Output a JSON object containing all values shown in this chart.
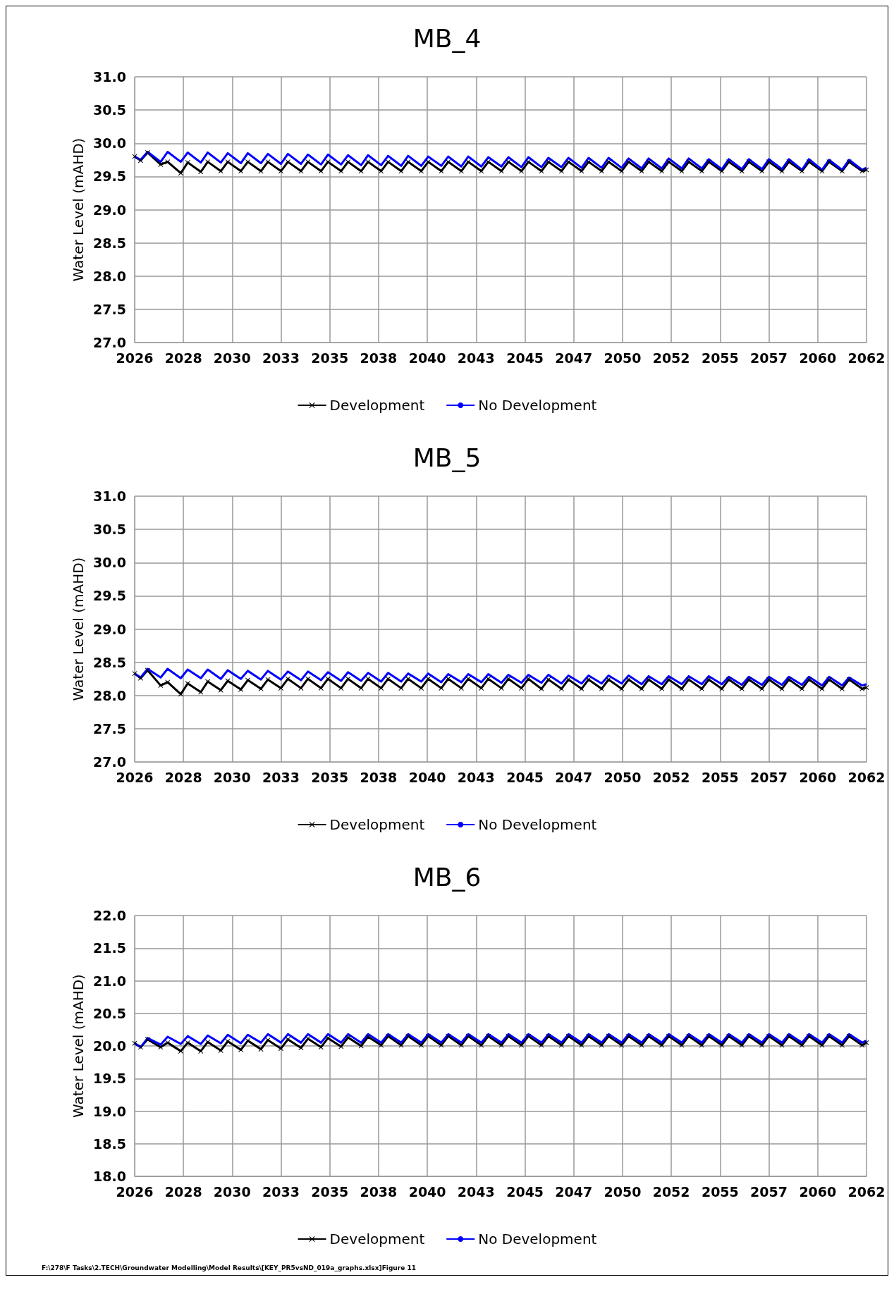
{
  "chart_data": [
    {
      "type": "line",
      "title": "MB_4",
      "ylabel": "Water Level (mAHD)",
      "x": [
        "2026-01-01",
        "2026-04-20",
        "2026-08-25",
        "2027-04-20",
        "2027-08-25",
        "2028-04-20",
        "2028-08-25",
        "2029-04-20",
        "2029-08-25",
        "2030-04-20",
        "2030-08-25",
        "2031-04-20",
        "2031-08-25",
        "2032-04-20",
        "2032-08-25",
        "2033-04-20",
        "2033-08-25",
        "2034-04-20",
        "2034-08-25",
        "2035-04-20",
        "2035-08-25",
        "2036-04-20",
        "2036-08-25",
        "2037-04-20",
        "2037-08-25",
        "2038-04-20",
        "2038-08-25",
        "2039-04-20",
        "2039-08-25",
        "2040-04-20",
        "2040-08-25",
        "2041-04-20",
        "2041-08-25",
        "2042-04-20",
        "2042-08-25",
        "2043-04-20",
        "2043-08-25",
        "2044-04-20",
        "2044-08-25",
        "2045-04-20",
        "2045-08-25",
        "2046-04-20",
        "2046-08-25",
        "2047-04-20",
        "2047-08-25",
        "2048-04-20",
        "2048-08-25",
        "2049-04-20",
        "2049-08-25",
        "2050-04-20",
        "2050-08-25",
        "2051-04-20",
        "2051-08-25",
        "2052-04-20",
        "2052-08-25",
        "2053-04-20",
        "2053-08-25",
        "2054-04-20",
        "2054-08-25",
        "2055-04-20",
        "2055-08-25",
        "2056-04-20",
        "2056-08-25",
        "2057-04-20",
        "2057-08-25",
        "2058-04-20",
        "2058-08-25",
        "2059-04-20",
        "2059-08-25",
        "2060-04-20",
        "2060-08-25",
        "2061-04-20",
        "2061-08-25",
        "2062-04-20",
        "2062-07-09"
      ],
      "series": [
        {
          "name": "Development",
          "color": "#000000",
          "marker": "cross",
          "values": [
            29.8,
            29.74,
            29.86,
            29.68,
            29.72,
            29.55,
            29.71,
            29.57,
            29.72,
            29.58,
            29.72,
            29.58,
            29.72,
            29.58,
            29.72,
            29.58,
            29.72,
            29.58,
            29.72,
            29.58,
            29.72,
            29.58,
            29.72,
            29.58,
            29.72,
            29.58,
            29.72,
            29.58,
            29.72,
            29.58,
            29.72,
            29.58,
            29.72,
            29.58,
            29.72,
            29.58,
            29.72,
            29.58,
            29.72,
            29.58,
            29.72,
            29.58,
            29.72,
            29.58,
            29.72,
            29.58,
            29.72,
            29.58,
            29.72,
            29.58,
            29.72,
            29.58,
            29.72,
            29.58,
            29.72,
            29.58,
            29.72,
            29.58,
            29.72,
            29.58,
            29.72,
            29.58,
            29.72,
            29.58,
            29.72,
            29.58,
            29.72,
            29.58,
            29.72,
            29.58,
            29.72,
            29.58,
            29.72,
            29.58,
            29.6
          ]
        },
        {
          "name": "No Development",
          "color": "#0000ff",
          "marker": "none",
          "values": [
            29.8,
            29.75,
            29.87,
            29.72,
            29.87,
            29.72,
            29.86,
            29.71,
            29.86,
            29.71,
            29.85,
            29.7,
            29.85,
            29.7,
            29.84,
            29.69,
            29.84,
            29.69,
            29.83,
            29.68,
            29.83,
            29.68,
            29.82,
            29.67,
            29.82,
            29.67,
            29.81,
            29.66,
            29.81,
            29.66,
            29.8,
            29.66,
            29.8,
            29.65,
            29.8,
            29.65,
            29.79,
            29.65,
            29.79,
            29.64,
            29.79,
            29.64,
            29.78,
            29.64,
            29.78,
            29.63,
            29.78,
            29.63,
            29.78,
            29.63,
            29.77,
            29.62,
            29.77,
            29.62,
            29.77,
            29.62,
            29.77,
            29.62,
            29.76,
            29.61,
            29.76,
            29.61,
            29.76,
            29.61,
            29.76,
            29.61,
            29.76,
            29.6,
            29.76,
            29.6,
            29.75,
            29.6,
            29.75,
            29.6,
            29.63
          ]
        }
      ],
      "xlim": [
        "2026-01-01",
        "2062-07-09"
      ],
      "xticks": [
        {
          "value": "2026-01-01",
          "label": "2026"
        },
        {
          "value": "2028-06-08",
          "label": "2028"
        },
        {
          "value": "2030-11-13",
          "label": "2030"
        },
        {
          "value": "2033-04-21",
          "label": "2033"
        },
        {
          "value": "2035-09-26",
          "label": "2035"
        },
        {
          "value": "2038-03-03",
          "label": "2038"
        },
        {
          "value": "2040-08-09",
          "label": "2040"
        },
        {
          "value": "2043-01-15",
          "label": "2043"
        },
        {
          "value": "2045-06-24",
          "label": "2045"
        },
        {
          "value": "2047-11-29",
          "label": "2047"
        },
        {
          "value": "2050-05-06",
          "label": "2050"
        },
        {
          "value": "2052-10-11",
          "label": "2052"
        },
        {
          "value": "2055-03-20",
          "label": "2055"
        },
        {
          "value": "2057-08-25",
          "label": "2057"
        },
        {
          "value": "2060-02-01",
          "label": "2060"
        },
        {
          "value": "2062-07-09",
          "label": "2062"
        }
      ],
      "ylim": [
        27,
        31
      ],
      "yticks": [
        {
          "value": 27,
          "label": "27.0"
        },
        {
          "value": 27.5,
          "label": "27.5"
        },
        {
          "value": 28,
          "label": "28.0"
        },
        {
          "value": 28.5,
          "label": "28.5"
        },
        {
          "value": 29,
          "label": "29.0"
        },
        {
          "value": 29.5,
          "label": "29.5"
        },
        {
          "value": 30,
          "label": "30.0"
        },
        {
          "value": 30.5,
          "label": "30.5"
        },
        {
          "value": 31,
          "label": "31.0"
        }
      ],
      "grid": true,
      "legend": "bottom"
    },
    {
      "type": "line",
      "title": "MB_5",
      "ylabel": "Water Level (mAHD)",
      "x": [
        "2026-01-01",
        "2026-04-20",
        "2026-08-25",
        "2027-04-20",
        "2027-08-25",
        "2028-04-20",
        "2028-08-25",
        "2029-04-20",
        "2029-08-25",
        "2030-04-20",
        "2030-08-25",
        "2031-04-20",
        "2031-08-25",
        "2032-04-20",
        "2032-08-25",
        "2033-04-20",
        "2033-08-25",
        "2034-04-20",
        "2034-08-25",
        "2035-04-20",
        "2035-08-25",
        "2036-04-20",
        "2036-08-25",
        "2037-04-20",
        "2037-08-25",
        "2038-04-20",
        "2038-08-25",
        "2039-04-20",
        "2039-08-25",
        "2040-04-20",
        "2040-08-25",
        "2041-04-20",
        "2041-08-25",
        "2042-04-20",
        "2042-08-25",
        "2043-04-20",
        "2043-08-25",
        "2044-04-20",
        "2044-08-25",
        "2045-04-20",
        "2045-08-25",
        "2046-04-20",
        "2046-08-25",
        "2047-04-20",
        "2047-08-25",
        "2048-04-20",
        "2048-08-25",
        "2049-04-20",
        "2049-08-25",
        "2050-04-20",
        "2050-08-25",
        "2051-04-20",
        "2051-08-25",
        "2052-04-20",
        "2052-08-25",
        "2053-04-20",
        "2053-08-25",
        "2054-04-20",
        "2054-08-25",
        "2055-04-20",
        "2055-08-25",
        "2056-04-20",
        "2056-08-25",
        "2057-04-20",
        "2057-08-25",
        "2058-04-20",
        "2058-08-25",
        "2059-04-20",
        "2059-08-25",
        "2060-04-20",
        "2060-08-25",
        "2061-04-20",
        "2061-08-25",
        "2062-04-20",
        "2062-07-09"
      ],
      "series": [
        {
          "name": "Development",
          "color": "#000000",
          "marker": "cross",
          "values": [
            28.33,
            28.26,
            28.38,
            28.15,
            28.2,
            28.02,
            28.18,
            28.05,
            28.21,
            28.08,
            28.22,
            28.09,
            28.23,
            28.1,
            28.24,
            28.11,
            28.25,
            28.11,
            28.25,
            28.11,
            28.25,
            28.11,
            28.25,
            28.11,
            28.25,
            28.11,
            28.25,
            28.11,
            28.25,
            28.11,
            28.25,
            28.11,
            28.25,
            28.11,
            28.25,
            28.11,
            28.25,
            28.11,
            28.25,
            28.11,
            28.25,
            28.1,
            28.24,
            28.1,
            28.24,
            28.1,
            28.24,
            28.1,
            28.24,
            28.1,
            28.24,
            28.1,
            28.24,
            28.1,
            28.24,
            28.1,
            28.24,
            28.1,
            28.24,
            28.1,
            28.24,
            28.1,
            28.24,
            28.1,
            28.24,
            28.1,
            28.24,
            28.1,
            28.24,
            28.1,
            28.24,
            28.1,
            28.24,
            28.1,
            28.12
          ]
        },
        {
          "name": "No Development",
          "color": "#0000ff",
          "marker": "none",
          "values": [
            28.33,
            28.27,
            28.4,
            28.27,
            28.4,
            28.26,
            28.39,
            28.26,
            28.39,
            28.25,
            28.38,
            28.25,
            28.37,
            28.24,
            28.37,
            28.24,
            28.36,
            28.23,
            28.36,
            28.23,
            28.35,
            28.22,
            28.35,
            28.22,
            28.34,
            28.21,
            28.34,
            28.21,
            28.33,
            28.21,
            28.33,
            28.2,
            28.32,
            28.2,
            28.32,
            28.2,
            28.32,
            28.19,
            28.31,
            28.19,
            28.31,
            28.19,
            28.31,
            28.18,
            28.3,
            28.18,
            28.3,
            28.18,
            28.3,
            28.18,
            28.3,
            28.17,
            28.29,
            28.17,
            28.29,
            28.17,
            28.29,
            28.17,
            28.29,
            28.17,
            28.28,
            28.16,
            28.28,
            28.16,
            28.28,
            28.16,
            28.28,
            28.16,
            28.28,
            28.15,
            28.28,
            28.15,
            28.27,
            28.15,
            28.17
          ]
        }
      ],
      "xlim": [
        "2026-01-01",
        "2062-07-09"
      ],
      "xticks": [
        {
          "value": "2026-01-01",
          "label": "2026"
        },
        {
          "value": "2028-06-08",
          "label": "2028"
        },
        {
          "value": "2030-11-13",
          "label": "2030"
        },
        {
          "value": "2033-04-21",
          "label": "2033"
        },
        {
          "value": "2035-09-26",
          "label": "2035"
        },
        {
          "value": "2038-03-03",
          "label": "2038"
        },
        {
          "value": "2040-08-09",
          "label": "2040"
        },
        {
          "value": "2043-01-15",
          "label": "2043"
        },
        {
          "value": "2045-06-24",
          "label": "2045"
        },
        {
          "value": "2047-11-29",
          "label": "2047"
        },
        {
          "value": "2050-05-06",
          "label": "2050"
        },
        {
          "value": "2052-10-11",
          "label": "2052"
        },
        {
          "value": "2055-03-20",
          "label": "2055"
        },
        {
          "value": "2057-08-25",
          "label": "2057"
        },
        {
          "value": "2060-02-01",
          "label": "2060"
        },
        {
          "value": "2062-07-09",
          "label": "2062"
        }
      ],
      "ylim": [
        27,
        31
      ],
      "yticks": [
        {
          "value": 27,
          "label": "27.0"
        },
        {
          "value": 27.5,
          "label": "27.5"
        },
        {
          "value": 28,
          "label": "28.0"
        },
        {
          "value": 28.5,
          "label": "28.5"
        },
        {
          "value": 29,
          "label": "29.0"
        },
        {
          "value": 29.5,
          "label": "29.5"
        },
        {
          "value": 30,
          "label": "30.0"
        },
        {
          "value": 30.5,
          "label": "30.5"
        },
        {
          "value": 31,
          "label": "31.0"
        }
      ],
      "grid": true,
      "legend": "bottom"
    },
    {
      "type": "line",
      "title": "MB_6",
      "ylabel": "Water Level (mAHD)",
      "x": [
        "2026-01-01",
        "2026-04-20",
        "2026-08-25",
        "2027-04-20",
        "2027-08-25",
        "2028-04-20",
        "2028-08-25",
        "2029-04-20",
        "2029-08-25",
        "2030-04-20",
        "2030-08-25",
        "2031-04-20",
        "2031-08-25",
        "2032-04-20",
        "2032-08-25",
        "2033-04-20",
        "2033-08-25",
        "2034-04-20",
        "2034-08-25",
        "2035-04-20",
        "2035-08-25",
        "2036-04-20",
        "2036-08-25",
        "2037-04-20",
        "2037-08-25",
        "2038-04-20",
        "2038-08-25",
        "2039-04-20",
        "2039-08-25",
        "2040-04-20",
        "2040-08-25",
        "2041-04-20",
        "2041-08-25",
        "2042-04-20",
        "2042-08-25",
        "2043-04-20",
        "2043-08-25",
        "2044-04-20",
        "2044-08-25",
        "2045-04-20",
        "2045-08-25",
        "2046-04-20",
        "2046-08-25",
        "2047-04-20",
        "2047-08-25",
        "2048-04-20",
        "2048-08-25",
        "2049-04-20",
        "2049-08-25",
        "2050-04-20",
        "2050-08-25",
        "2051-04-20",
        "2051-08-25",
        "2052-04-20",
        "2052-08-25",
        "2053-04-20",
        "2053-08-25",
        "2054-04-20",
        "2054-08-25",
        "2055-04-20",
        "2055-08-25",
        "2056-04-20",
        "2056-08-25",
        "2057-04-20",
        "2057-08-25",
        "2058-04-20",
        "2058-08-25",
        "2059-04-20",
        "2059-08-25",
        "2060-04-20",
        "2060-08-25",
        "2061-04-20",
        "2061-08-25",
        "2062-04-20",
        "2062-07-09"
      ],
      "series": [
        {
          "name": "Development",
          "color": "#000000",
          "marker": "cross",
          "values": [
            20.04,
            19.98,
            20.1,
            19.98,
            20.05,
            19.92,
            20.05,
            19.92,
            20.06,
            19.93,
            20.07,
            19.94,
            20.08,
            19.95,
            20.09,
            19.96,
            20.1,
            19.97,
            20.11,
            19.98,
            20.12,
            19.99,
            20.13,
            20.0,
            20.14,
            20.01,
            20.15,
            20.01,
            20.15,
            20.01,
            20.15,
            20.01,
            20.15,
            20.01,
            20.15,
            20.01,
            20.15,
            20.01,
            20.15,
            20.01,
            20.15,
            20.01,
            20.15,
            20.01,
            20.15,
            20.01,
            20.15,
            20.01,
            20.15,
            20.01,
            20.15,
            20.01,
            20.15,
            20.01,
            20.15,
            20.01,
            20.15,
            20.01,
            20.15,
            20.01,
            20.15,
            20.01,
            20.15,
            20.01,
            20.15,
            20.01,
            20.15,
            20.01,
            20.15,
            20.01,
            20.15,
            20.01,
            20.15,
            20.01,
            20.05
          ]
        },
        {
          "name": "No Development",
          "color": "#0000ff",
          "marker": "none",
          "values": [
            20.04,
            19.98,
            20.12,
            20.02,
            20.14,
            20.03,
            20.15,
            20.03,
            20.16,
            20.04,
            20.17,
            20.04,
            20.17,
            20.05,
            20.18,
            20.05,
            20.18,
            20.05,
            20.18,
            20.05,
            20.18,
            20.05,
            20.18,
            20.05,
            20.18,
            20.05,
            20.18,
            20.05,
            20.18,
            20.05,
            20.18,
            20.05,
            20.18,
            20.05,
            20.18,
            20.05,
            20.18,
            20.05,
            20.18,
            20.05,
            20.18,
            20.05,
            20.18,
            20.05,
            20.18,
            20.05,
            20.18,
            20.05,
            20.18,
            20.05,
            20.18,
            20.05,
            20.18,
            20.05,
            20.18,
            20.05,
            20.18,
            20.05,
            20.18,
            20.05,
            20.18,
            20.05,
            20.18,
            20.05,
            20.18,
            20.05,
            20.18,
            20.05,
            20.18,
            20.05,
            20.18,
            20.05,
            20.18,
            20.05,
            20.08
          ]
        }
      ],
      "xlim": [
        "2026-01-01",
        "2062-07-09"
      ],
      "xticks": [
        {
          "value": "2026-01-01",
          "label": "2026"
        },
        {
          "value": "2028-06-08",
          "label": "2028"
        },
        {
          "value": "2030-11-13",
          "label": "2030"
        },
        {
          "value": "2033-04-21",
          "label": "2033"
        },
        {
          "value": "2035-09-26",
          "label": "2035"
        },
        {
          "value": "2038-03-03",
          "label": "2038"
        },
        {
          "value": "2040-08-09",
          "label": "2040"
        },
        {
          "value": "2043-01-15",
          "label": "2043"
        },
        {
          "value": "2045-06-24",
          "label": "2045"
        },
        {
          "value": "2047-11-29",
          "label": "2047"
        },
        {
          "value": "2050-05-06",
          "label": "2050"
        },
        {
          "value": "2052-10-11",
          "label": "2052"
        },
        {
          "value": "2055-03-20",
          "label": "2055"
        },
        {
          "value": "2057-08-25",
          "label": "2057"
        },
        {
          "value": "2060-02-01",
          "label": "2060"
        },
        {
          "value": "2062-07-09",
          "label": "2062"
        }
      ],
      "ylim": [
        18,
        22
      ],
      "yticks": [
        {
          "value": 18,
          "label": "18.0"
        },
        {
          "value": 18.5,
          "label": "18.5"
        },
        {
          "value": 19,
          "label": "19.0"
        },
        {
          "value": 19.5,
          "label": "19.5"
        },
        {
          "value": 20,
          "label": "20.0"
        },
        {
          "value": 20.5,
          "label": "20.5"
        },
        {
          "value": 21,
          "label": "21.0"
        },
        {
          "value": 21.5,
          "label": "21.5"
        },
        {
          "value": 22,
          "label": "22.0"
        }
      ],
      "grid": true,
      "legend": "bottom",
      "annotations": [
        "F:\\278\\F Tasks\\2.TECH\\Groundwater Modelling\\Model Results\\[KEY_PR5vsND_019a_graphs.xlsx]Figure 11"
      ]
    }
  ]
}
